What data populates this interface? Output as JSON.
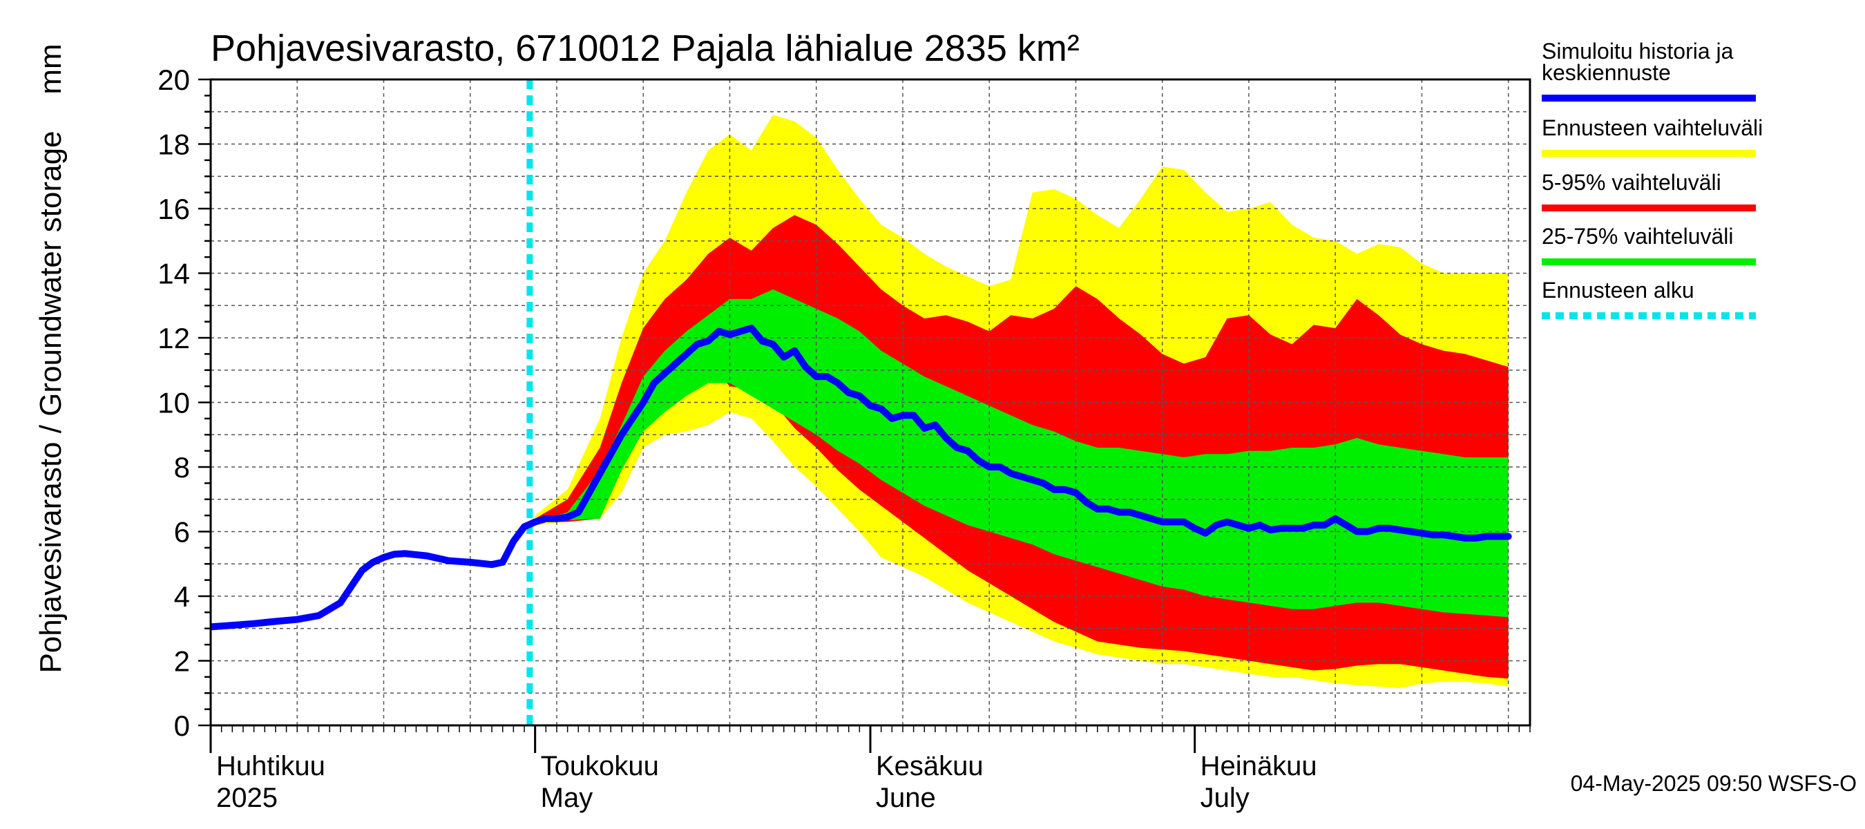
{
  "chart_data": {
    "type": "area",
    "title": "Pohjavesivarasto, 6710012 Pajala lähialue 2835 km²",
    "ylabel": "Pohjavesivarasto / Groundwater storage",
    "yunit": "mm",
    "ylim": [
      0,
      20
    ],
    "yticks": [
      "0",
      "2",
      "4",
      "6",
      "8",
      "10",
      "12",
      "14",
      "16",
      "18",
      "20"
    ],
    "x_start": "2025-03-31",
    "x_end": "2025-07-31",
    "forecast_start_day": 29.5,
    "months": [
      {
        "fi": "Huhtikuu",
        "en": "2025",
        "day": 0
      },
      {
        "fi": "Toukokuu",
        "en": "May",
        "day": 30
      },
      {
        "fi": "Kesäkuu",
        "en": "June",
        "day": 61
      },
      {
        "fi": "Heinäkuu",
        "en": "July",
        "day": 91
      }
    ],
    "legend": [
      {
        "label": "Simuloitu historia ja keskiennuste",
        "line1": "Simuloitu historia ja",
        "line2": "keskiennuste",
        "color": "#0000ff",
        "style": "solid"
      },
      {
        "label": "Ennusteen vaihteluväli",
        "color": "#ffff00",
        "style": "solid"
      },
      {
        "label": "5-95% vaihteluväli",
        "color": "#ff0000",
        "style": "solid"
      },
      {
        "label": "25-75% vaihteluväli",
        "color": "#00ee00",
        "style": "solid"
      },
      {
        "label": "Ennusteen alku",
        "color": "#00e5ee",
        "style": "dotted"
      }
    ],
    "series": [
      {
        "name": "Simuloitu historia ja keskiennuste",
        "color": "#0000ff",
        "x": [
          0,
          2,
          4,
          6,
          8,
          10,
          12,
          13,
          14,
          15,
          16,
          17,
          18,
          20,
          22,
          24,
          26,
          27,
          28,
          29,
          30,
          31,
          32,
          33,
          34,
          35,
          36,
          37,
          38,
          39,
          40,
          41,
          42,
          43,
          44,
          45,
          46,
          47,
          48,
          49,
          50,
          51,
          52,
          53,
          54,
          55,
          56,
          57,
          58,
          59,
          60,
          61,
          62,
          63,
          64,
          65,
          66,
          67,
          68,
          69,
          70,
          71,
          72,
          73,
          74,
          75,
          76,
          77,
          78,
          79,
          80,
          81,
          82,
          83,
          84,
          85,
          86,
          87,
          88,
          89,
          90,
          91,
          92,
          93,
          94,
          95,
          96,
          97,
          98,
          99,
          100,
          101,
          102,
          103,
          104,
          105,
          106,
          107,
          108,
          109,
          110,
          111,
          112,
          113,
          114,
          115,
          116,
          117,
          118,
          119,
          120
        ],
        "values": [
          3.05,
          3.1,
          3.15,
          3.22,
          3.28,
          3.4,
          3.8,
          4.3,
          4.8,
          5.05,
          5.2,
          5.3,
          5.32,
          5.25,
          5.1,
          5.05,
          4.98,
          5.05,
          5.7,
          6.15,
          6.3,
          6.4,
          6.4,
          6.45,
          6.6,
          7.2,
          7.8,
          8.4,
          9.0,
          9.5,
          10.0,
          10.6,
          10.9,
          11.2,
          11.5,
          11.8,
          11.9,
          12.2,
          12.1,
          12.2,
          12.3,
          11.9,
          11.8,
          11.4,
          11.6,
          11.1,
          10.8,
          10.8,
          10.6,
          10.3,
          10.2,
          9.9,
          9.8,
          9.5,
          9.6,
          9.6,
          9.2,
          9.3,
          8.9,
          8.6,
          8.5,
          8.2,
          8.0,
          8.0,
          7.8,
          7.7,
          7.6,
          7.5,
          7.3,
          7.3,
          7.2,
          6.9,
          6.7,
          6.7,
          6.6,
          6.6,
          6.5,
          6.4,
          6.3,
          6.3,
          6.3,
          6.1,
          5.95,
          6.2,
          6.3,
          6.2,
          6.1,
          6.2,
          6.05,
          6.1,
          6.1,
          6.1,
          6.2,
          6.2,
          6.4,
          6.2,
          6.0,
          6.0,
          6.1,
          6.1,
          6.05,
          6.0,
          5.95,
          5.9,
          5.9,
          5.85,
          5.8,
          5.8,
          5.85,
          5.85,
          5.85
        ]
      },
      {
        "name": "Ennusteen vaihteluväli",
        "color": "#ffff00",
        "x": [
          30,
          33,
          36,
          38,
          40,
          42,
          44,
          46,
          48,
          50,
          52,
          54,
          56,
          58,
          60,
          62,
          64,
          66,
          68,
          70,
          72,
          74,
          76,
          78,
          80,
          82,
          84,
          86,
          88,
          90,
          92,
          94,
          96,
          98,
          100,
          102,
          104,
          106,
          108,
          110,
          112,
          114,
          116,
          118,
          120
        ],
        "upper": [
          6.5,
          7.3,
          9.5,
          12.0,
          14.0,
          15.0,
          16.5,
          17.8,
          18.3,
          17.8,
          18.9,
          18.7,
          18.2,
          17.2,
          16.3,
          15.5,
          15.1,
          14.6,
          14.2,
          13.9,
          13.6,
          13.8,
          16.5,
          16.6,
          16.3,
          15.8,
          15.4,
          16.3,
          17.3,
          17.2,
          16.5,
          15.9,
          16.0,
          16.2,
          15.5,
          15.1,
          15.0,
          14.6,
          14.9,
          14.8,
          14.3,
          14.0,
          14.0,
          14.0,
          14.0
        ],
        "lower": [
          6.2,
          6.3,
          6.4,
          7.2,
          8.6,
          9.0,
          9.1,
          9.3,
          9.7,
          9.5,
          8.8,
          8.0,
          7.4,
          6.7,
          6.0,
          5.2,
          4.9,
          4.6,
          4.2,
          3.8,
          3.5,
          3.2,
          2.9,
          2.6,
          2.4,
          2.2,
          2.1,
          2.0,
          1.9,
          1.9,
          1.8,
          1.7,
          1.6,
          1.5,
          1.5,
          1.4,
          1.3,
          1.25,
          1.2,
          1.15,
          1.3,
          1.35,
          1.35,
          1.3,
          1.2
        ]
      },
      {
        "name": "5-95% vaihteluväli",
        "color": "#ff0000",
        "x": [
          30,
          33,
          36,
          38,
          40,
          42,
          44,
          46,
          48,
          50,
          52,
          54,
          56,
          58,
          60,
          62,
          64,
          66,
          68,
          70,
          72,
          74,
          76,
          78,
          80,
          82,
          84,
          86,
          88,
          90,
          92,
          94,
          96,
          98,
          100,
          102,
          104,
          106,
          108,
          110,
          112,
          114,
          116,
          118,
          120
        ],
        "upper": [
          6.4,
          7.0,
          8.6,
          10.6,
          12.3,
          13.2,
          13.8,
          14.6,
          15.1,
          14.7,
          15.4,
          15.8,
          15.5,
          14.9,
          14.2,
          13.5,
          13.0,
          12.6,
          12.7,
          12.5,
          12.2,
          12.7,
          12.6,
          12.9,
          13.6,
          13.2,
          12.6,
          12.1,
          11.5,
          11.2,
          11.4,
          12.6,
          12.7,
          12.1,
          11.8,
          12.4,
          12.3,
          13.2,
          12.7,
          12.1,
          11.8,
          11.6,
          11.5,
          11.3,
          11.1
        ],
        "lower": [
          6.3,
          6.3,
          6.4,
          8.4,
          9.5,
          10.2,
          10.6,
          11.2,
          10.5,
          10.4,
          10.0,
          9.2,
          8.6,
          7.9,
          7.3,
          6.8,
          6.3,
          5.8,
          5.3,
          4.8,
          4.4,
          4.0,
          3.6,
          3.2,
          2.9,
          2.6,
          2.5,
          2.4,
          2.35,
          2.3,
          2.2,
          2.1,
          2.0,
          1.9,
          1.8,
          1.7,
          1.75,
          1.85,
          1.9,
          1.9,
          1.8,
          1.7,
          1.6,
          1.5,
          1.45
        ]
      },
      {
        "name": "25-75% vaihteluväli",
        "color": "#00ee00",
        "x": [
          30,
          33,
          36,
          38,
          40,
          42,
          44,
          46,
          48,
          50,
          52,
          54,
          56,
          58,
          60,
          62,
          64,
          66,
          68,
          70,
          72,
          74,
          76,
          78,
          80,
          82,
          84,
          86,
          88,
          90,
          92,
          94,
          96,
          98,
          100,
          102,
          104,
          106,
          108,
          110,
          112,
          114,
          116,
          118,
          120
        ],
        "upper": [
          6.3,
          6.6,
          7.9,
          9.3,
          10.8,
          11.6,
          12.2,
          12.7,
          13.2,
          13.2,
          13.5,
          13.2,
          12.9,
          12.6,
          12.2,
          11.6,
          11.2,
          10.8,
          10.5,
          10.2,
          9.9,
          9.6,
          9.3,
          9.1,
          8.8,
          8.6,
          8.6,
          8.5,
          8.4,
          8.3,
          8.4,
          8.4,
          8.5,
          8.5,
          8.6,
          8.6,
          8.7,
          8.9,
          8.7,
          8.6,
          8.5,
          8.4,
          8.3,
          8.3,
          8.3
        ],
        "lower": [
          6.3,
          6.35,
          6.4,
          7.9,
          9.1,
          9.7,
          10.2,
          10.6,
          10.6,
          10.2,
          9.8,
          9.4,
          9.0,
          8.5,
          8.1,
          7.6,
          7.2,
          6.8,
          6.5,
          6.2,
          6.0,
          5.8,
          5.6,
          5.3,
          5.1,
          4.9,
          4.7,
          4.5,
          4.3,
          4.2,
          4.0,
          3.9,
          3.8,
          3.7,
          3.6,
          3.6,
          3.7,
          3.8,
          3.8,
          3.7,
          3.6,
          3.5,
          3.45,
          3.4,
          3.35
        ]
      }
    ]
  },
  "timestamp": "04-May-2025 09:50 WSFS-O"
}
